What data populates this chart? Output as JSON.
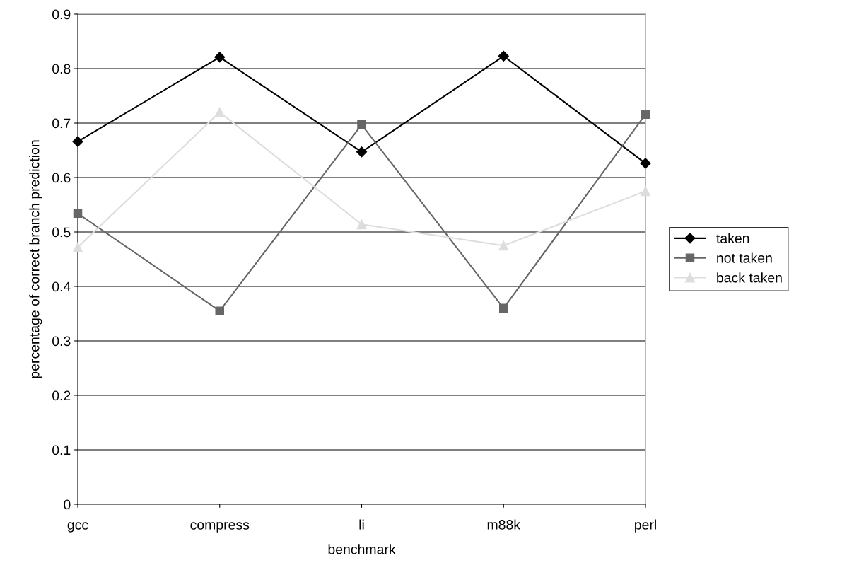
{
  "chart_data": {
    "type": "line",
    "xlabel": "benchmark",
    "ylabel": "percentage of correct branch prediction",
    "categories": [
      "gcc",
      "compress",
      "li",
      "m88k",
      "perl"
    ],
    "series": [
      {
        "name": "taken",
        "color": "#000000",
        "marker": "diamond",
        "values": [
          0.666,
          0.821,
          0.647,
          0.823,
          0.626
        ]
      },
      {
        "name": "not taken",
        "color": "#666666",
        "marker": "square",
        "values": [
          0.534,
          0.355,
          0.697,
          0.36,
          0.716
        ]
      },
      {
        "name": "back taken",
        "color": "#dddddd",
        "marker": "triangle",
        "values": [
          0.472,
          0.72,
          0.514,
          0.475,
          0.575
        ]
      }
    ],
    "ylim": [
      0,
      0.9
    ],
    "yticks": [
      0,
      0.1,
      0.2,
      0.3,
      0.4,
      0.5,
      0.6,
      0.7,
      0.8,
      0.9
    ],
    "grid": "y",
    "legend": "right",
    "line_style": "solid"
  }
}
